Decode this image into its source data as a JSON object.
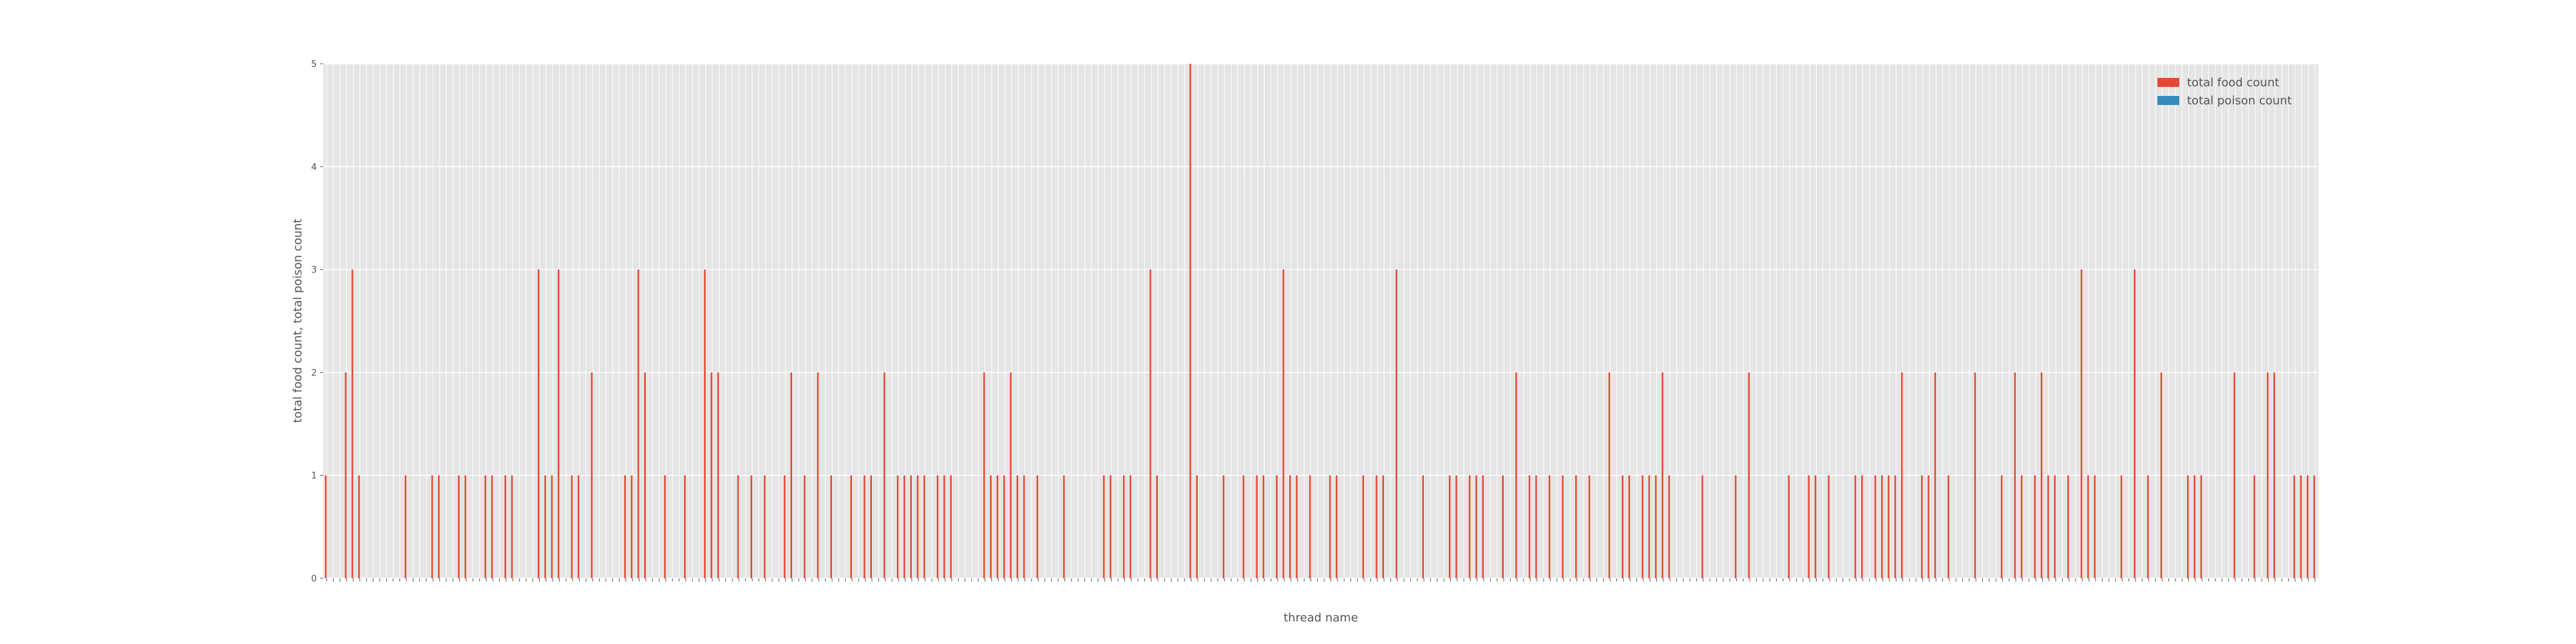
{
  "chart_data": {
    "type": "bar",
    "x_label": "thread name",
    "y_label": "total food count, total poison count",
    "categories": [
      null,
      null,
      null,
      null,
      null,
      null,
      null,
      null,
      null,
      null,
      null,
      null,
      null,
      null,
      null,
      null,
      null,
      null,
      null,
      null,
      null,
      null,
      null,
      null,
      null,
      null,
      null,
      null,
      null,
      null,
      null,
      null,
      null,
      null,
      null,
      null,
      null,
      null,
      null,
      null,
      null,
      null,
      null,
      null,
      null,
      null,
      null,
      null,
      null,
      null,
      null,
      null,
      null,
      null,
      null,
      null,
      null,
      null,
      null,
      null,
      null,
      null,
      null,
      null,
      null,
      null,
      null,
      null,
      null,
      null,
      null,
      null,
      null,
      null,
      null,
      null,
      null,
      null,
      null,
      null,
      null,
      null,
      null,
      null,
      null,
      null,
      null,
      null,
      null,
      null,
      null,
      null,
      null,
      null,
      null,
      null,
      null,
      null,
      null,
      null,
      null,
      null,
      null,
      null,
      null,
      null,
      null,
      null,
      null,
      null,
      null,
      null,
      null,
      null,
      null,
      null,
      null,
      null,
      null,
      null,
      null,
      null,
      null,
      null,
      null,
      null,
      null,
      null,
      null,
      null,
      null,
      null,
      null,
      null,
      null,
      null,
      null,
      null,
      null,
      null,
      null,
      null,
      null,
      null,
      null,
      null,
      null,
      null,
      null,
      null,
      null,
      null,
      null,
      null,
      null,
      null,
      null,
      null,
      null,
      null,
      null,
      null,
      null,
      null,
      null,
      null,
      null,
      null,
      null,
      null,
      null,
      null,
      null,
      null,
      null,
      null,
      null,
      null,
      null,
      null,
      null,
      null,
      null,
      null,
      null,
      null,
      null,
      null,
      null,
      null,
      null,
      null,
      null,
      null,
      null,
      null,
      null,
      null,
      null,
      null,
      null,
      null,
      null,
      null,
      null,
      null,
      null,
      null,
      null,
      null,
      null,
      null,
      null,
      null,
      null,
      null,
      null,
      null,
      null,
      null,
      null,
      null,
      null,
      null,
      null,
      null,
      null,
      null,
      null,
      null,
      null,
      null,
      null,
      null,
      null,
      null,
      null,
      null,
      null,
      null,
      null,
      null,
      null,
      null,
      null,
      null,
      null,
      null,
      null,
      null,
      null,
      null,
      null,
      null,
      null,
      null,
      null,
      null,
      null,
      null,
      null,
      null,
      null,
      null,
      null,
      null,
      null,
      null,
      null,
      null,
      null,
      null,
      null,
      null,
      null,
      null,
      null,
      null,
      null,
      null,
      null,
      null,
      null,
      null,
      null,
      null,
      null,
      null,
      null,
      null,
      null,
      null,
      null,
      null,
      null,
      null,
      null,
      null,
      null,
      null
    ],
    "series": [
      {
        "name": "total food count",
        "color": "#e24a33",
        "values": [
          1,
          0,
          0,
          2,
          3,
          1,
          0,
          0,
          0,
          0,
          0,
          0,
          1,
          0,
          0,
          0,
          1,
          1,
          0,
          0,
          1,
          1,
          0,
          0,
          1,
          1,
          0,
          1,
          1,
          0,
          0,
          0,
          3,
          1,
          1,
          3,
          0,
          1,
          1,
          0,
          2,
          0,
          0,
          0,
          0,
          1,
          1,
          3,
          2,
          0,
          0,
          1,
          0,
          0,
          1,
          0,
          0,
          3,
          2,
          2,
          0,
          0,
          1,
          0,
          1,
          0,
          1,
          0,
          0,
          1,
          2,
          0,
          1,
          0,
          2,
          0,
          1,
          0,
          0,
          1,
          0,
          1,
          1,
          0,
          2,
          0,
          1,
          1,
          1,
          1,
          1,
          0,
          1,
          1,
          1,
          0,
          0,
          0,
          0,
          2,
          1,
          1,
          1,
          2,
          1,
          1,
          0,
          1,
          0,
          0,
          0,
          1,
          0,
          0,
          0,
          0,
          0,
          1,
          1,
          0,
          1,
          1,
          0,
          0,
          3,
          1,
          0,
          0,
          0,
          0,
          5,
          1,
          0,
          0,
          0,
          1,
          0,
          0,
          1,
          0,
          1,
          1,
          0,
          1,
          3,
          1,
          1,
          0,
          1,
          0,
          0,
          1,
          1,
          0,
          0,
          0,
          1,
          0,
          1,
          1,
          0,
          3,
          0,
          0,
          0,
          1,
          0,
          0,
          0,
          1,
          1,
          0,
          1,
          1,
          1,
          0,
          0,
          1,
          0,
          2,
          0,
          1,
          1,
          0,
          1,
          0,
          1,
          0,
          1,
          0,
          1,
          0,
          0,
          2,
          0,
          1,
          1,
          0,
          1,
          1,
          1,
          2,
          1,
          0,
          0,
          0,
          0,
          1,
          0,
          0,
          0,
          0,
          1,
          0,
          2,
          0,
          0,
          0,
          0,
          0,
          1,
          0,
          0,
          1,
          1,
          0,
          1,
          0,
          0,
          0,
          1,
          1,
          0,
          1,
          1,
          1,
          1,
          2,
          0,
          0,
          1,
          1,
          2,
          0,
          1,
          0,
          0,
          0,
          2,
          0,
          0,
          0,
          1,
          0,
          2,
          1,
          0,
          1,
          2,
          1,
          1,
          0,
          1,
          0,
          3,
          1,
          1,
          0,
          0,
          0,
          1,
          0,
          3,
          0,
          1,
          0,
          2,
          0,
          0,
          0,
          1,
          1,
          1,
          0,
          0,
          0,
          0,
          2,
          0,
          0,
          1,
          0,
          2,
          2,
          0,
          0,
          1,
          1,
          1,
          1
        ]
      },
      {
        "name": "total poison count",
        "color": "#348abd",
        "values": [
          0,
          0,
          0,
          0,
          0,
          0,
          0,
          0,
          0,
          0,
          0,
          0,
          0,
          0,
          0,
          0,
          0,
          0,
          0,
          0,
          0,
          0,
          0,
          0,
          0,
          0,
          0,
          0,
          0,
          0,
          0,
          0,
          0,
          0,
          0,
          0,
          0,
          0,
          0,
          0,
          0,
          0,
          0,
          0,
          0,
          0,
          0,
          0,
          0,
          0,
          0,
          0,
          0,
          0,
          0,
          0,
          0,
          0,
          0,
          0,
          0,
          0,
          0,
          0,
          0,
          0,
          0,
          0,
          0,
          0,
          0,
          0,
          0,
          0,
          0,
          0,
          0,
          0,
          0,
          0,
          0,
          0,
          0,
          0,
          0,
          0,
          0,
          0,
          0,
          0,
          0,
          0,
          0,
          0,
          0,
          0,
          0,
          0,
          0,
          0,
          0,
          0,
          0,
          0,
          0,
          0,
          0,
          0,
          0,
          0,
          0,
          0,
          0,
          0,
          0,
          0,
          0,
          0,
          0,
          0,
          0,
          0,
          0,
          0,
          0,
          0,
          0,
          0,
          0,
          0,
          0,
          0,
          0,
          0,
          0,
          0,
          0,
          0,
          0,
          0,
          0,
          0,
          0,
          0,
          0,
          0,
          0,
          0,
          0,
          0,
          0,
          0,
          0,
          0,
          0,
          0,
          0,
          0,
          0,
          0,
          0,
          0,
          0,
          0,
          0,
          0,
          0,
          0,
          0,
          0,
          0,
          0,
          0,
          0,
          0,
          0,
          0,
          0,
          0,
          0,
          0,
          0,
          0,
          0,
          0,
          0,
          0,
          0,
          0,
          0,
          0,
          0,
          0,
          0,
          0,
          0,
          0,
          0,
          0,
          0,
          0,
          0,
          0,
          0,
          0,
          0,
          0,
          0,
          0,
          0,
          0,
          0,
          0,
          0,
          0,
          0,
          0,
          0,
          0,
          0,
          0,
          0,
          0,
          0,
          0,
          0,
          0,
          0,
          0,
          0,
          0,
          0,
          0,
          0,
          0,
          0,
          0,
          0,
          0,
          0,
          0,
          0,
          0,
          0,
          0,
          0,
          0,
          0,
          0,
          0,
          0,
          0,
          0,
          0,
          0,
          0,
          0,
          0,
          0,
          0,
          0,
          0,
          0,
          0,
          0,
          0,
          0,
          0,
          0,
          0,
          0,
          0,
          0,
          0,
          0,
          0,
          0,
          0,
          0,
          0,
          0,
          0,
          0,
          0,
          0,
          0,
          0,
          0,
          0,
          0,
          0,
          0,
          0,
          0,
          0,
          0,
          0,
          0,
          0,
          0
        ]
      }
    ],
    "ylim": [
      0,
      5
    ],
    "yticks": [
      0,
      1,
      2,
      3,
      4,
      5
    ],
    "grid": true,
    "legend": "upper right"
  }
}
